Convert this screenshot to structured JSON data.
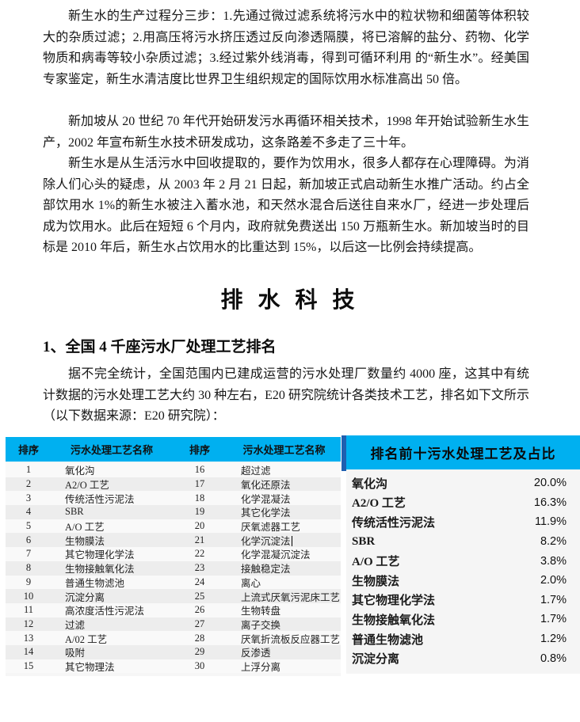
{
  "document": {
    "paragraphs": [
      "新生水的生产过程分三步：1.先通过微过滤系统将污水中的粒状物和细菌等体积较大的杂质过滤；2.用高压将污水挤压透过反向渗透隔膜，将已溶解的盐分、药物、化学物质和病毒等较小杂质过滤；3.经过紫外线消毒，得到可循环利用 的“新生水”。经美国专家鉴定，新生水清洁度比世界卫生组织规定的国际饮用水标准高出 50 倍。",
      "新加坡从 20 世纪 70 年代开始研发污水再循环相关技术，1998 年开始试验新生水生产，2002 年宣布新生水技术研发成功，这条路差不多走了三十年。",
      "新生水是从生活污水中回收提取的，要作为饮用水，很多人都存在心理障碍。为消除人们心头的疑虑，从 2003 年 2 月 21 日起，新加坡正式启动新生水推广活动。约占全部饮用水 1%的新生水被注入蓄水池，和天然水混合后送往自来水厂，经进一步处理后成为饮用水。此后在短短 6 个月内，政府就免费送出 150 万瓶新生水。新加坡当时的目标是 2010 年后，新生水占饮用水的比重达到 15%，以后这一比例会持续提高。"
    ],
    "chapter_heading": "排 水 科 技",
    "section_title": "1、全国 4 千座污水厂处理工艺排名",
    "section_paragraph": "据不完全统计，全国范围内已建成运营的污水处理厂数量约 4000 座，这其中有统计数据的污水处理工艺大约 30 种左右，E20 研究院统计各类技术工艺，排名如下文所示（以下数据来源：E20 研究院）："
  },
  "ranking_table": {
    "headers": [
      "排序",
      "污水处理工艺名称",
      "排序",
      "污水处理工艺名称"
    ],
    "rows": [
      [
        "1",
        "氧化沟",
        "16",
        "超过滤"
      ],
      [
        "2",
        "A2/O 工艺",
        "17",
        "氧化还原法"
      ],
      [
        "3",
        "传统活性污泥法",
        "18",
        "化学混凝法"
      ],
      [
        "4",
        "SBR",
        "19",
        "其它化学法"
      ],
      [
        "5",
        "A/O 工艺",
        "20",
        "厌氧滤器工艺"
      ],
      [
        "6",
        "生物膜法",
        "21",
        "化学沉淀法"
      ],
      [
        "7",
        "其它物理化学法",
        "22",
        "化学混凝沉淀法"
      ],
      [
        "8",
        "生物接触氧化法",
        "23",
        "接触稳定法"
      ],
      [
        "9",
        "普通生物滤池",
        "24",
        "离心"
      ],
      [
        "10",
        "沉淀分离",
        "25",
        "上流式厌氧污泥床工艺"
      ],
      [
        "11",
        "高浓度活性污泥法",
        "26",
        "生物转盘"
      ],
      [
        "12",
        "过滤",
        "27",
        "离子交换"
      ],
      [
        "13",
        "A/02 工艺",
        "28",
        "厌氧折流板反应器工艺"
      ],
      [
        "14",
        "吸附",
        "29",
        "反渗透"
      ],
      [
        "15",
        "其它物理法",
        "30",
        "上浮分离"
      ]
    ],
    "caret_after": "化学沉淀法"
  },
  "top10_panel": {
    "title": "排名前十污水处理工艺及占比",
    "items": [
      {
        "label": "氧化沟",
        "value": "20.0%"
      },
      {
        "label": "A2/O 工艺",
        "value": "16.3%"
      },
      {
        "label": "传统活性污泥法",
        "value": "11.9%"
      },
      {
        "label": "SBR",
        "value": "8.2%"
      },
      {
        "label": "A/O 工艺",
        "value": "3.8%"
      },
      {
        "label": "生物膜法",
        "value": "2.0%"
      },
      {
        "label": "其它物理化学法",
        "value": "1.7%"
      },
      {
        "label": "生物接触氧化法",
        "value": "1.7%"
      },
      {
        "label": "普通生物滤池",
        "value": "1.2%"
      },
      {
        "label": "沉淀分离",
        "value": "0.8%"
      }
    ]
  },
  "colors": {
    "accent_cyan": "#00b0f0",
    "divider_blue": "#1f5fb0",
    "table_background": "#f6f6f6"
  }
}
